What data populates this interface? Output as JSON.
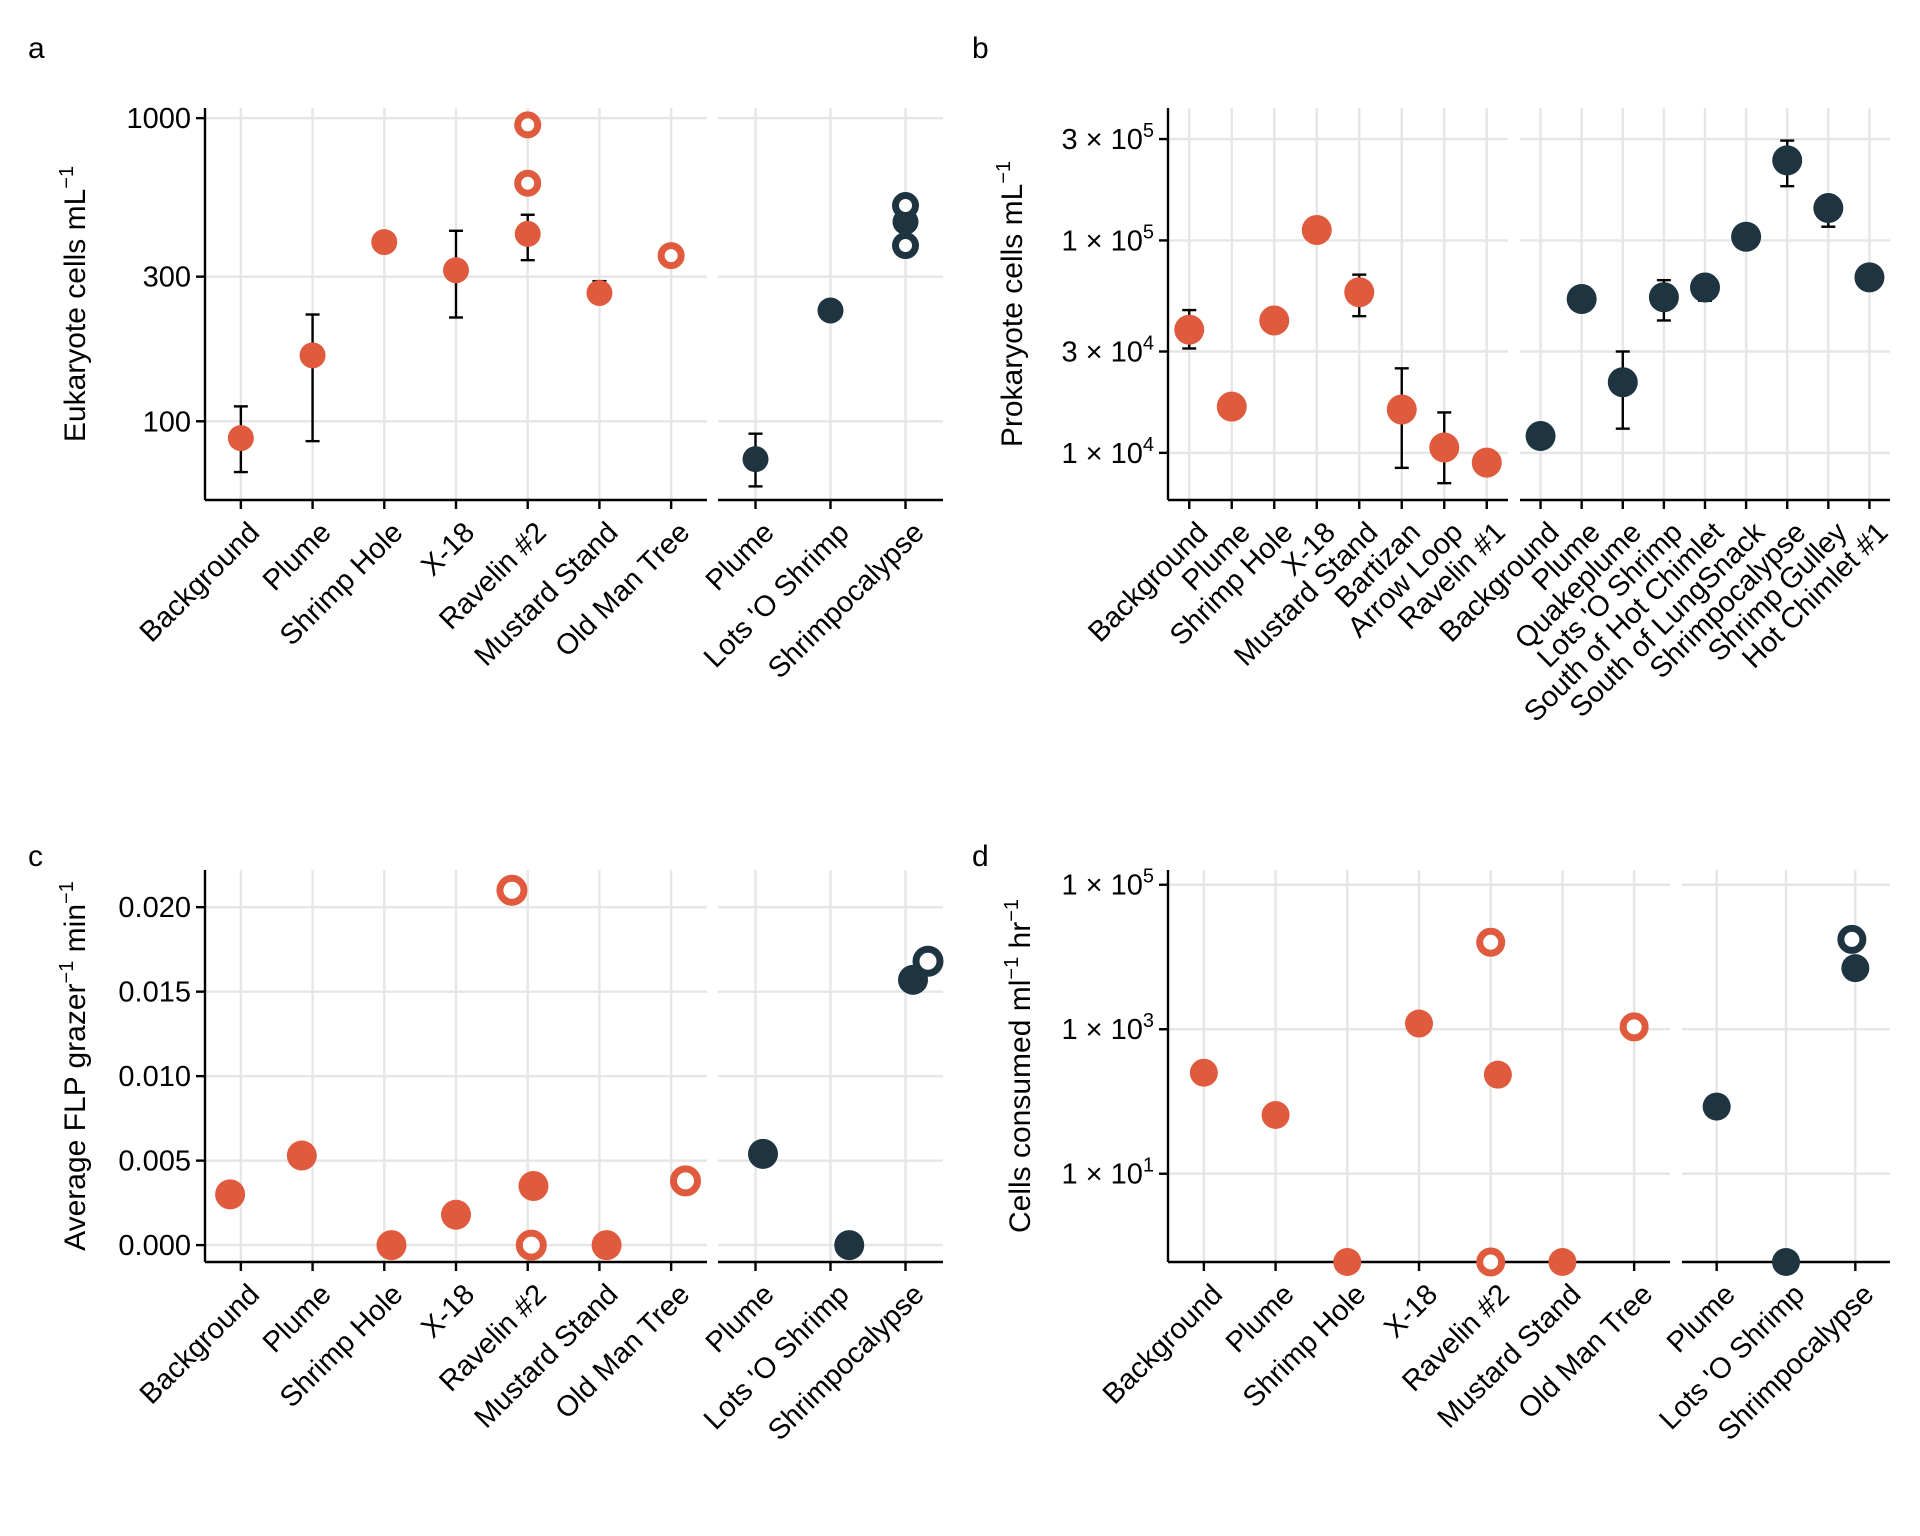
{
  "colors": {
    "orange": "#e05a3e",
    "navy": "#1e3440",
    "grid": "#e6e6e6"
  },
  "chart_data": [
    {
      "panel": "a",
      "type": "scatter",
      "ylabel": "Eukaryote cells  mL",
      "ylabel_sup": "−1",
      "yscale": "log",
      "ylim": [
        55,
        1080
      ],
      "yticks": [
        {
          "value": 100,
          "label": "100"
        },
        {
          "value": 300,
          "label": "300"
        },
        {
          "value": 1000,
          "label": "1000"
        }
      ],
      "groups": [
        {
          "color": "orange",
          "categories": [
            "Background",
            "Plume",
            "Shrimp Hole",
            "X-18",
            "Ravelin #2",
            "Mustard Stand",
            "Old Man Tree"
          ],
          "points": [
            {
              "x": "Background",
              "y": 88,
              "ymin": 68,
              "ymax": 112,
              "hollow": false
            },
            {
              "x": "Plume",
              "y": 165,
              "ymin": 86,
              "ymax": 225,
              "hollow": false
            },
            {
              "x": "Shrimp Hole",
              "y": 390,
              "hollow": false
            },
            {
              "x": "X-18",
              "y": 315,
              "ymin": 220,
              "ymax": 425,
              "hollow": false
            },
            {
              "x": "Ravelin #2",
              "y": 415,
              "ymin": 340,
              "ymax": 480,
              "hollow": false
            },
            {
              "x": "Ravelin #2",
              "y": 950,
              "hollow": true
            },
            {
              "x": "Ravelin #2",
              "y": 610,
              "hollow": true
            },
            {
              "x": "Mustard Stand",
              "y": 265,
              "ymin": 248,
              "ymax": 290,
              "hollow": false
            },
            {
              "x": "Old Man Tree",
              "y": 352,
              "hollow": true
            }
          ]
        },
        {
          "color": "navy",
          "categories": [
            "Plume",
            "Lots 'O Shrimp",
            "Shrimpocalypse"
          ],
          "points": [
            {
              "x": "Plume",
              "y": 75,
              "ymin": 61,
              "ymax": 91,
              "hollow": false
            },
            {
              "x": "Lots 'O Shrimp",
              "y": 232,
              "hollow": false
            },
            {
              "x": "Shrimpocalypse",
              "y": 455,
              "hollow": false
            },
            {
              "x": "Shrimpocalypse",
              "y": 515,
              "hollow": true
            },
            {
              "x": "Shrimpocalypse",
              "y": 380,
              "hollow": true
            }
          ]
        }
      ]
    },
    {
      "panel": "b",
      "type": "scatter",
      "ylabel": "Prokaryote cells  mL",
      "ylabel_sup": "−1",
      "yscale": "log",
      "ylim": [
        6000,
        420000
      ],
      "yticks": [
        {
          "value": 10000,
          "label": "1 × 10",
          "sup": "4"
        },
        {
          "value": 30000,
          "label": "3 × 10",
          "sup": "4"
        },
        {
          "value": 100000,
          "label": "1 × 10",
          "sup": "5"
        },
        {
          "value": 300000,
          "label": "3 × 10",
          "sup": "5"
        }
      ],
      "groups": [
        {
          "color": "orange",
          "categories": [
            "Background",
            "Plume",
            "Shrimp Hole",
            "X-18",
            "Mustard Stand",
            "Bartizan",
            "Arrow Loop",
            "Ravelin #1"
          ],
          "points": [
            {
              "x": "Background",
              "y": 38000,
              "ymin": 31000,
              "ymax": 47000,
              "hollow": false
            },
            {
              "x": "Plume",
              "y": 16500,
              "ymin": 14500,
              "ymax": 17500,
              "hollow": false
            },
            {
              "x": "Shrimp Hole",
              "y": 42000,
              "hollow": false
            },
            {
              "x": "X-18",
              "y": 112000,
              "hollow": false
            },
            {
              "x": "Mustard Stand",
              "y": 57000,
              "ymin": 44000,
              "ymax": 69000,
              "hollow": false
            },
            {
              "x": "Bartizan",
              "y": 16000,
              "ymin": 8500,
              "ymax": 25000,
              "hollow": false
            },
            {
              "x": "Arrow Loop",
              "y": 10600,
              "ymin": 7200,
              "ymax": 15500,
              "hollow": false
            },
            {
              "x": "Ravelin #1",
              "y": 9000,
              "hollow": false
            }
          ]
        },
        {
          "color": "navy",
          "categories": [
            "Background",
            "Plume",
            "Quakeplume",
            "Lots 'O Shrimp",
            "South of Hot Chimlet",
            "South of LungSnack",
            "Shrimpocalypse",
            "Shrimp Gulley",
            "Hot Chimlet #1"
          ],
          "points": [
            {
              "x": "Background",
              "y": 12000,
              "hollow": false
            },
            {
              "x": "Plume",
              "y": 53000,
              "hollow": false
            },
            {
              "x": "Quakeplume",
              "y": 21500,
              "ymin": 13000,
              "ymax": 30000,
              "hollow": false
            },
            {
              "x": "Lots 'O Shrimp",
              "y": 54000,
              "ymin": 42000,
              "ymax": 65000,
              "hollow": false
            },
            {
              "x": "South of Hot Chimlet",
              "y": 60000,
              "ymin": 52000,
              "ymax": 64000,
              "hollow": false
            },
            {
              "x": "South of LungSnack",
              "y": 104000,
              "hollow": false
            },
            {
              "x": "Shrimpocalypse",
              "y": 238000,
              "ymin": 180000,
              "ymax": 295000,
              "hollow": false
            },
            {
              "x": "Shrimp Gulley",
              "y": 142000,
              "ymin": 116000,
              "ymax": 162000,
              "hollow": false
            },
            {
              "x": "Hot Chimlet #1",
              "y": 67000,
              "hollow": false
            }
          ]
        }
      ]
    },
    {
      "panel": "c",
      "type": "scatter",
      "ylabel": "Average FLP  grazer",
      "ylabel_sup": "−1",
      "ylabel_tail": " min",
      "ylabel_tail_sup": "−1",
      "yscale": "linear",
      "ylim": [
        -0.001,
        0.0222
      ],
      "yticks": [
        {
          "value": 0.0,
          "label": "0.000"
        },
        {
          "value": 0.005,
          "label": "0.005"
        },
        {
          "value": 0.01,
          "label": "0.010"
        },
        {
          "value": 0.015,
          "label": "0.015"
        },
        {
          "value": 0.02,
          "label": "0.020"
        }
      ],
      "groups": [
        {
          "color": "orange",
          "categories": [
            "Background",
            "Plume",
            "Shrimp Hole",
            "X-18",
            "Ravelin #2",
            "Mustard Stand",
            "Old Man Tree"
          ],
          "points": [
            {
              "x": "Background",
              "y": 0.003,
              "dx": -0.15,
              "hollow": false
            },
            {
              "x": "Plume",
              "y": 0.0053,
              "dx": -0.15,
              "hollow": false
            },
            {
              "x": "Shrimp Hole",
              "y": 0.0,
              "dx": 0.1,
              "hollow": false
            },
            {
              "x": "X-18",
              "y": 0.0018,
              "dx": 0.0,
              "hollow": false
            },
            {
              "x": "Ravelin #2",
              "y": 0.021,
              "dx": -0.22,
              "hollow": true
            },
            {
              "x": "Ravelin #2",
              "y": 0.0035,
              "dx": 0.08,
              "hollow": false
            },
            {
              "x": "Ravelin #2",
              "y": 0.0,
              "dx": 0.05,
              "hollow": true
            },
            {
              "x": "Mustard Stand",
              "y": 0.0,
              "dx": 0.1,
              "hollow": false
            },
            {
              "x": "Old Man Tree",
              "y": 0.0038,
              "dx": 0.2,
              "hollow": true
            }
          ]
        },
        {
          "color": "navy",
          "categories": [
            "Plume",
            "Lots 'O Shrimp",
            "Shrimpocalypse"
          ],
          "points": [
            {
              "x": "Plume",
              "y": 0.0054,
              "dx": 0.1,
              "hollow": false
            },
            {
              "x": "Lots 'O Shrimp",
              "y": 0.0,
              "dx": 0.25,
              "hollow": false
            },
            {
              "x": "Shrimpocalypse",
              "y": 0.0157,
              "dx": 0.1,
              "hollow": false
            },
            {
              "x": "Shrimpocalypse",
              "y": 0.0168,
              "dx": 0.3,
              "hollow": true
            }
          ]
        }
      ]
    },
    {
      "panel": "d",
      "type": "scatter",
      "ylabel": "Cells consumed  ml",
      "ylabel_sup": "−1",
      "ylabel_tail": " hr",
      "ylabel_tail_sup": "−1",
      "yscale": "log",
      "ylim": [
        0.6,
        160000
      ],
      "yticks": [
        {
          "value": 10,
          "label": "1 × 10",
          "sup": "1"
        },
        {
          "value": 1000,
          "label": "1 × 10",
          "sup": "3"
        },
        {
          "value": 100000,
          "label": "1 × 10",
          "sup": "5"
        }
      ],
      "groups": [
        {
          "color": "orange",
          "categories": [
            "Background",
            "Plume",
            "Shrimp Hole",
            "X-18",
            "Ravelin #2",
            "Mustard Stand",
            "Old Man Tree"
          ],
          "points": [
            {
              "x": "Background",
              "y": 250,
              "dx": 0.0,
              "hollow": false
            },
            {
              "x": "Plume",
              "y": 65,
              "ymin": 48,
              "ymax": 75,
              "dx": 0.0,
              "hollow": false
            },
            {
              "x": "Shrimp Hole",
              "y": 0.6,
              "dx": 0.0,
              "hollow": false
            },
            {
              "x": "X-18",
              "y": 1200,
              "dx": 0.0,
              "hollow": false
            },
            {
              "x": "Ravelin #2",
              "y": 16000,
              "dx": 0.0,
              "hollow": true
            },
            {
              "x": "Ravelin #2",
              "y": 235,
              "dx": 0.1,
              "hollow": false
            },
            {
              "x": "Ravelin #2",
              "y": 0.6,
              "dx": 0.0,
              "hollow": true
            },
            {
              "x": "Mustard Stand",
              "y": 0.6,
              "dx": 0.0,
              "hollow": false
            },
            {
              "x": "Old Man Tree",
              "y": 1080,
              "dx": 0.0,
              "hollow": true
            }
          ]
        },
        {
          "color": "navy",
          "categories": [
            "Plume",
            "Lots 'O Shrimp",
            "Shrimpocalypse"
          ],
          "points": [
            {
              "x": "Plume",
              "y": 85,
              "dx": 0.0,
              "hollow": false
            },
            {
              "x": "Lots 'O Shrimp",
              "y": 0.6,
              "dx": 0.0,
              "hollow": false
            },
            {
              "x": "Shrimpocalypse",
              "y": 17500,
              "dx": -0.05,
              "hollow": true
            },
            {
              "x": "Shrimpocalypse",
              "y": 7000,
              "dx": 0.0,
              "hollow": false
            }
          ]
        }
      ]
    }
  ]
}
